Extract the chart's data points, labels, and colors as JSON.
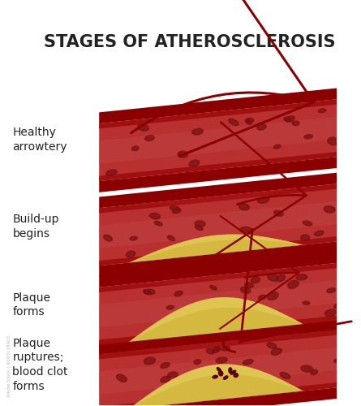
{
  "title": "STAGES OF ATHEROSCLEROSIS",
  "title_fontsize": 15,
  "title_fontweight": "bold",
  "bg": "#ffffff",
  "dark_red": "#8B0000",
  "mid_red": "#A01010",
  "wall_red": "#B22020",
  "lumen_red": "#C04040",
  "inner_lumen": "#B83030",
  "plaque_yellow": "#D4B840",
  "plaque_light": "#E8D060",
  "clot_dark": "#5A0000",
  "arrow_col": "#8B0000",
  "cell_col": "#7A1010",
  "label_col": "#222222",
  "stock_col": "#bbbbbb",
  "stages": [
    {
      "label": "Healthy\narrowtery"
    },
    {
      "label": "Build-up\nbegins"
    },
    {
      "label": "Plaque\nforms"
    },
    {
      "label": "Plaque\nruptures;\nblood clot\nforms"
    }
  ]
}
